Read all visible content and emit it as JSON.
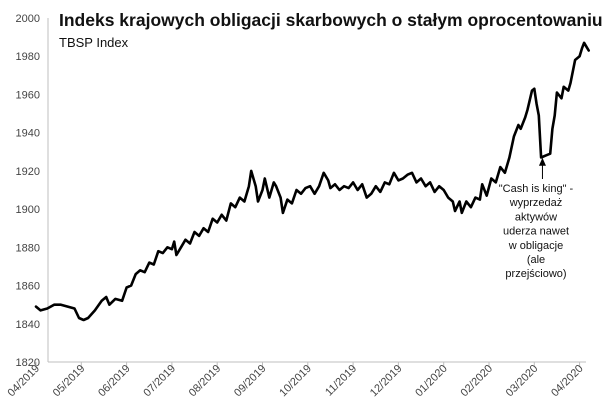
{
  "chart_data": {
    "type": "line",
    "title": "Indeks krajowych obligacji skarbowych o stałym oprocentowaniu",
    "subtitle": "TBSP Index",
    "xlabel": "",
    "ylabel": "",
    "ylim": [
      1820,
      2000
    ],
    "ytick_step": 20,
    "y_ticks": [
      "1820",
      "1840",
      "1860",
      "1880",
      "1900",
      "1920",
      "1940",
      "1960",
      "1980",
      "2000"
    ],
    "x_ticks": [
      "04/2019",
      "05/2019",
      "06/2019",
      "07/2019",
      "08/2019",
      "09/2019",
      "10/2019",
      "11/2019",
      "12/2019",
      "01/2020",
      "02/2020",
      "03/2020",
      "04/2020"
    ],
    "grid": false,
    "legend": "none",
    "line_color": "#000000",
    "series": [
      {
        "points": [
          [
            0.0,
            1849
          ],
          [
            0.1,
            1847
          ],
          [
            0.25,
            1848
          ],
          [
            0.4,
            1850
          ],
          [
            0.55,
            1850
          ],
          [
            0.7,
            1849
          ],
          [
            0.85,
            1848
          ],
          [
            0.95,
            1843
          ],
          [
            1.05,
            1842
          ],
          [
            1.15,
            1843
          ],
          [
            1.3,
            1847
          ],
          [
            1.45,
            1852
          ],
          [
            1.55,
            1854
          ],
          [
            1.62,
            1850
          ],
          [
            1.75,
            1853
          ],
          [
            1.9,
            1852
          ],
          [
            2.0,
            1859
          ],
          [
            2.1,
            1860
          ],
          [
            2.2,
            1866
          ],
          [
            2.3,
            1868
          ],
          [
            2.4,
            1867
          ],
          [
            2.5,
            1872
          ],
          [
            2.6,
            1871
          ],
          [
            2.7,
            1878
          ],
          [
            2.8,
            1877
          ],
          [
            2.9,
            1880
          ],
          [
            3.0,
            1879
          ],
          [
            3.05,
            1883
          ],
          [
            3.1,
            1876
          ],
          [
            3.2,
            1880
          ],
          [
            3.3,
            1884
          ],
          [
            3.4,
            1882
          ],
          [
            3.5,
            1888
          ],
          [
            3.6,
            1886
          ],
          [
            3.7,
            1890
          ],
          [
            3.8,
            1888
          ],
          [
            3.9,
            1895
          ],
          [
            4.0,
            1893
          ],
          [
            4.1,
            1897
          ],
          [
            4.2,
            1894
          ],
          [
            4.3,
            1903
          ],
          [
            4.4,
            1901
          ],
          [
            4.5,
            1906
          ],
          [
            4.6,
            1904
          ],
          [
            4.7,
            1912
          ],
          [
            4.75,
            1920
          ],
          [
            4.85,
            1912
          ],
          [
            4.9,
            1904
          ],
          [
            5.0,
            1910
          ],
          [
            5.05,
            1916
          ],
          [
            5.15,
            1906
          ],
          [
            5.25,
            1914
          ],
          [
            5.3,
            1912
          ],
          [
            5.4,
            1906
          ],
          [
            5.45,
            1898
          ],
          [
            5.55,
            1905
          ],
          [
            5.65,
            1903
          ],
          [
            5.75,
            1910
          ],
          [
            5.85,
            1908
          ],
          [
            5.95,
            1911
          ],
          [
            6.05,
            1912
          ],
          [
            6.15,
            1908
          ],
          [
            6.25,
            1912
          ],
          [
            6.35,
            1919
          ],
          [
            6.45,
            1915
          ],
          [
            6.5,
            1911
          ],
          [
            6.6,
            1913
          ],
          [
            6.7,
            1910
          ],
          [
            6.8,
            1912
          ],
          [
            6.9,
            1911
          ],
          [
            7.0,
            1914
          ],
          [
            7.1,
            1910
          ],
          [
            7.2,
            1913
          ],
          [
            7.3,
            1906
          ],
          [
            7.4,
            1908
          ],
          [
            7.5,
            1912
          ],
          [
            7.6,
            1909
          ],
          [
            7.7,
            1914
          ],
          [
            7.8,
            1913
          ],
          [
            7.9,
            1919
          ],
          [
            8.0,
            1915
          ],
          [
            8.1,
            1916
          ],
          [
            8.2,
            1918
          ],
          [
            8.3,
            1919
          ],
          [
            8.4,
            1914
          ],
          [
            8.5,
            1916
          ],
          [
            8.6,
            1912
          ],
          [
            8.7,
            1914
          ],
          [
            8.8,
            1909
          ],
          [
            8.9,
            1912
          ],
          [
            9.0,
            1910
          ],
          [
            9.1,
            1906
          ],
          [
            9.2,
            1904
          ],
          [
            9.25,
            1899
          ],
          [
            9.35,
            1904
          ],
          [
            9.4,
            1898
          ],
          [
            9.5,
            1904
          ],
          [
            9.6,
            1901
          ],
          [
            9.7,
            1906
          ],
          [
            9.8,
            1905
          ],
          [
            9.85,
            1913
          ],
          [
            9.95,
            1907
          ],
          [
            10.05,
            1916
          ],
          [
            10.15,
            1914
          ],
          [
            10.25,
            1922
          ],
          [
            10.35,
            1919
          ],
          [
            10.45,
            1927
          ],
          [
            10.55,
            1938
          ],
          [
            10.65,
            1944
          ],
          [
            10.7,
            1942
          ],
          [
            10.8,
            1948
          ],
          [
            10.85,
            1952
          ],
          [
            10.95,
            1962
          ],
          [
            11.0,
            1963
          ],
          [
            11.05,
            1955
          ],
          [
            11.1,
            1949
          ],
          [
            11.15,
            1927
          ],
          [
            11.25,
            1928
          ],
          [
            11.35,
            1929
          ],
          [
            11.4,
            1942
          ],
          [
            11.45,
            1949
          ],
          [
            11.5,
            1961
          ],
          [
            11.6,
            1958
          ],
          [
            11.65,
            1964
          ],
          [
            11.75,
            1962
          ],
          [
            11.8,
            1966
          ],
          [
            11.9,
            1978
          ],
          [
            12.0,
            1980
          ],
          [
            12.05,
            1984
          ],
          [
            12.1,
            1987
          ],
          [
            12.15,
            1985
          ],
          [
            12.2,
            1983
          ]
        ]
      }
    ],
    "annotation": {
      "lines": [
        "\"Cash is king\" -",
        "wyprzedaż",
        "aktywów",
        "uderza nawet",
        "w obligacje",
        "(ale",
        "przejściowo)"
      ],
      "points_to": [
        11.18,
        1929
      ]
    }
  }
}
